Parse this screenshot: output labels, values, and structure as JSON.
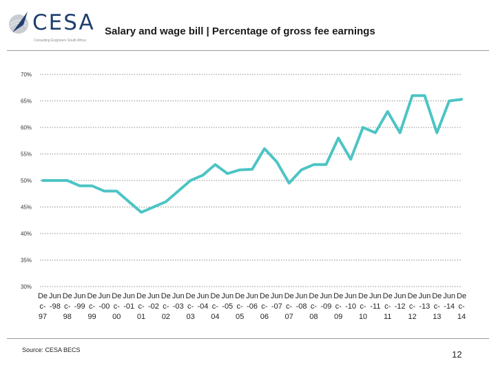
{
  "header": {
    "logo_text": "CESA",
    "logo_subtitle": "Consulting Engineers South Africa",
    "title": "Salary and wage bill | Percentage of gross fee earnings"
  },
  "footer": {
    "source": "Source: CESA BECS",
    "page_number": "12"
  },
  "colors": {
    "line": "#4dc4c4",
    "brand": "#1f3f6e",
    "grid": "#8c8c8c"
  },
  "chart_data": {
    "type": "line",
    "title": "Salary and wage bill | Percentage of gross fee earnings",
    "xlabel": "",
    "ylabel": "",
    "ylim": [
      30,
      70
    ],
    "yticks": [
      30,
      35,
      40,
      45,
      50,
      55,
      60,
      65,
      70
    ],
    "ytick_labels": [
      "30%",
      "35%",
      "40%",
      "45%",
      "50%",
      "55%",
      "60%",
      "65%",
      "70%"
    ],
    "grid": true,
    "legend": "none",
    "categories": [
      "Dec-97",
      "Jun-98",
      "Dec-98",
      "Jun-99",
      "Dec-99",
      "Jun-00",
      "Dec-00",
      "Jun-01",
      "Dec-01",
      "Jun-02",
      "Dec-02",
      "Jun-03",
      "Dec-03",
      "Jun-04",
      "Dec-04",
      "Jun-05",
      "Dec-05",
      "Jun-06",
      "Dec-06",
      "Jun-07",
      "Dec-07",
      "Jun-08",
      "Dec-08",
      "Jun-09",
      "Dec-09",
      "Jun-10",
      "Dec-10",
      "Jun-11",
      "Dec-11",
      "Jun-12",
      "Dec-12",
      "Jun-13",
      "Dec-13",
      "Jun-14",
      "Dec-14"
    ],
    "category_labels": [
      [
        "De",
        "c-",
        "97"
      ],
      [
        "Jun",
        "-98",
        ""
      ],
      [
        "De",
        "c-",
        "98"
      ],
      [
        "Jun",
        "-99",
        ""
      ],
      [
        "De",
        "c-",
        "99"
      ],
      [
        "Jun",
        "-00",
        ""
      ],
      [
        "De",
        "c-",
        "00"
      ],
      [
        "Jun",
        "-01",
        ""
      ],
      [
        "De",
        "c-",
        "01"
      ],
      [
        "Jun",
        "-02",
        ""
      ],
      [
        "De",
        "c-",
        "02"
      ],
      [
        "Jun",
        "-03",
        ""
      ],
      [
        "De",
        "c-",
        "03"
      ],
      [
        "Jun",
        "-04",
        ""
      ],
      [
        "De",
        "c-",
        "04"
      ],
      [
        "Jun",
        "-05",
        ""
      ],
      [
        "De",
        "c-",
        "05"
      ],
      [
        "Jun",
        "-06",
        ""
      ],
      [
        "De",
        "c-",
        "06"
      ],
      [
        "Jun",
        "-07",
        ""
      ],
      [
        "De",
        "c-",
        "07"
      ],
      [
        "Jun",
        "-08",
        ""
      ],
      [
        "De",
        "c-",
        "08"
      ],
      [
        "Jun",
        "-09",
        ""
      ],
      [
        "De",
        "c-",
        "09"
      ],
      [
        "Jun",
        "-10",
        ""
      ],
      [
        "De",
        "c-",
        "10"
      ],
      [
        "Jun",
        "-11",
        ""
      ],
      [
        "De",
        "c-",
        "11"
      ],
      [
        "Jun",
        "-12",
        ""
      ],
      [
        "De",
        "c-",
        "12"
      ],
      [
        "Jun",
        "-13",
        ""
      ],
      [
        "De",
        "c-",
        "13"
      ],
      [
        "Jun",
        "-14",
        ""
      ],
      [
        "De",
        "c-",
        "14"
      ]
    ],
    "series": [
      {
        "name": "Salary and wage bill",
        "values": [
          50,
          50,
          50,
          49,
          49,
          48,
          48,
          46,
          44,
          45,
          46,
          48,
          50,
          51,
          53,
          51.3,
          52,
          52.1,
          56,
          53.5,
          49.5,
          52,
          53,
          53,
          58,
          54,
          60,
          59,
          63,
          59,
          66,
          66,
          59,
          65,
          65.3
        ]
      }
    ]
  }
}
